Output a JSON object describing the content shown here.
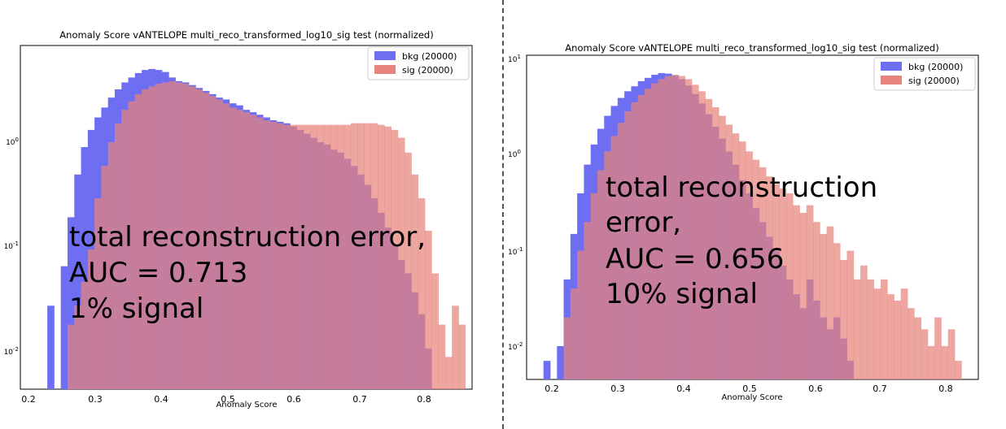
{
  "panels": [
    {
      "title": "Anomaly Score vANTELOPE multi_reco_transformed_log10_sig test (normalized)",
      "xlabel": "Anomaly Score",
      "x_ticks": [
        "0.2",
        "0.3",
        "0.4",
        "0.5",
        "0.6",
        "0.7",
        "0.8"
      ],
      "y_ticks": [
        "10^0",
        "10^-1",
        "10^-2"
      ],
      "legend": [
        "bkg (20000)",
        "sig (20000)"
      ],
      "annotation": [
        "total reconstruction error,",
        "AUC = 0.713",
        "1% signal"
      ]
    },
    {
      "title": "Anomaly Score vANTELOPE multi_reco_transformed_log10_sig test (normalized)",
      "xlabel": "Anomaly Score",
      "x_ticks": [
        "0.2",
        "0.3",
        "0.4",
        "0.5",
        "0.6",
        "0.7",
        "0.8"
      ],
      "y_ticks": [
        "10^1",
        "10^0",
        "10^-1",
        "10^-2"
      ],
      "legend": [
        "bkg (20000)",
        "sig (20000)"
      ],
      "annotation": [
        "total reconstruction",
        "error,",
        "AUC = 0.656",
        "10% signal"
      ]
    }
  ],
  "colors": {
    "bkg": "#6e6ef2",
    "sig": "#e8837b",
    "overlap": "#ae4179"
  },
  "chart_data": [
    {
      "type": "bar",
      "title": "Anomaly Score vANTELOPE multi_reco_transformed_log10_sig test (normalized)",
      "xlabel": "Anomaly Score",
      "ylabel": "",
      "scale": "log",
      "xlim": [
        0.18,
        0.85
      ],
      "ylim_log10": [
        -2.3,
        0.9
      ],
      "legend_position": "top-right",
      "series": [
        {
          "name": "bkg (20000)",
          "color": "#6e6ef2",
          "points": [
            [
              0.225,
              0.03
            ],
            [
              0.235,
              0.005
            ],
            [
              0.245,
              0.07
            ],
            [
              0.255,
              0.2
            ],
            [
              0.265,
              0.5
            ],
            [
              0.275,
              0.9
            ],
            [
              0.285,
              1.3
            ],
            [
              0.295,
              1.7
            ],
            [
              0.305,
              2.1
            ],
            [
              0.315,
              2.6
            ],
            [
              0.325,
              3.1
            ],
            [
              0.335,
              3.6
            ],
            [
              0.345,
              4.0
            ],
            [
              0.355,
              4.4
            ],
            [
              0.365,
              4.7
            ],
            [
              0.375,
              4.8
            ],
            [
              0.385,
              4.7
            ],
            [
              0.395,
              4.5
            ],
            [
              0.405,
              4.0
            ],
            [
              0.415,
              3.7
            ],
            [
              0.425,
              3.6
            ],
            [
              0.435,
              3.4
            ],
            [
              0.445,
              3.2
            ],
            [
              0.455,
              3.0
            ],
            [
              0.465,
              2.8
            ],
            [
              0.475,
              2.6
            ],
            [
              0.485,
              2.5
            ],
            [
              0.495,
              2.3
            ],
            [
              0.505,
              2.2
            ],
            [
              0.515,
              2.0
            ],
            [
              0.525,
              1.9
            ],
            [
              0.535,
              1.8
            ],
            [
              0.545,
              1.7
            ],
            [
              0.555,
              1.6
            ],
            [
              0.565,
              1.55
            ],
            [
              0.575,
              1.5
            ],
            [
              0.585,
              1.4
            ],
            [
              0.595,
              1.3
            ],
            [
              0.605,
              1.2
            ],
            [
              0.615,
              1.1
            ],
            [
              0.625,
              1.0
            ],
            [
              0.635,
              0.95
            ],
            [
              0.645,
              0.85
            ],
            [
              0.655,
              0.8
            ],
            [
              0.665,
              0.7
            ],
            [
              0.675,
              0.6
            ],
            [
              0.685,
              0.5
            ],
            [
              0.695,
              0.4
            ],
            [
              0.705,
              0.3
            ],
            [
              0.715,
              0.22
            ],
            [
              0.725,
              0.16
            ],
            [
              0.735,
              0.11
            ],
            [
              0.745,
              0.08
            ],
            [
              0.755,
              0.06
            ],
            [
              0.765,
              0.04
            ],
            [
              0.775,
              0.025
            ],
            [
              0.785,
              0.012
            ]
          ]
        },
        {
          "name": "sig (20000)",
          "color": "#e8837b",
          "points": [
            [
              0.255,
              0.02
            ],
            [
              0.265,
              0.03
            ],
            [
              0.275,
              0.05
            ],
            [
              0.285,
              0.1
            ],
            [
              0.295,
              0.3
            ],
            [
              0.305,
              0.6
            ],
            [
              0.315,
              1.0
            ],
            [
              0.325,
              1.5
            ],
            [
              0.335,
              2.0
            ],
            [
              0.345,
              2.4
            ],
            [
              0.355,
              2.8
            ],
            [
              0.365,
              3.1
            ],
            [
              0.375,
              3.3
            ],
            [
              0.385,
              3.5
            ],
            [
              0.395,
              3.6
            ],
            [
              0.405,
              3.7
            ],
            [
              0.415,
              3.6
            ],
            [
              0.425,
              3.5
            ],
            [
              0.435,
              3.3
            ],
            [
              0.445,
              3.1
            ],
            [
              0.455,
              2.9
            ],
            [
              0.465,
              2.7
            ],
            [
              0.475,
              2.5
            ],
            [
              0.485,
              2.3
            ],
            [
              0.495,
              2.1
            ],
            [
              0.505,
              2.0
            ],
            [
              0.515,
              1.9
            ],
            [
              0.525,
              1.8
            ],
            [
              0.535,
              1.7
            ],
            [
              0.545,
              1.6
            ],
            [
              0.555,
              1.55
            ],
            [
              0.565,
              1.5
            ],
            [
              0.575,
              1.45
            ],
            [
              0.585,
              1.45
            ],
            [
              0.595,
              1.45
            ],
            [
              0.605,
              1.45
            ],
            [
              0.615,
              1.45
            ],
            [
              0.625,
              1.45
            ],
            [
              0.635,
              1.45
            ],
            [
              0.645,
              1.45
            ],
            [
              0.655,
              1.45
            ],
            [
              0.665,
              1.45
            ],
            [
              0.675,
              1.5
            ],
            [
              0.685,
              1.5
            ],
            [
              0.695,
              1.5
            ],
            [
              0.705,
              1.5
            ],
            [
              0.715,
              1.45
            ],
            [
              0.725,
              1.4
            ],
            [
              0.735,
              1.3
            ],
            [
              0.745,
              1.1
            ],
            [
              0.755,
              0.8
            ],
            [
              0.765,
              0.5
            ],
            [
              0.775,
              0.3
            ],
            [
              0.785,
              0.15
            ],
            [
              0.795,
              0.06
            ],
            [
              0.805,
              0.02
            ],
            [
              0.815,
              0.01
            ],
            [
              0.825,
              0.03
            ],
            [
              0.835,
              0.02
            ]
          ]
        }
      ]
    },
    {
      "type": "bar",
      "title": "Anomaly Score vANTELOPE multi_reco_transformed_log10_sig test (normalized)",
      "xlabel": "Anomaly Score",
      "ylabel": "",
      "scale": "log",
      "xlim": [
        0.165,
        0.835
      ],
      "ylim_log10": [
        -2.35,
        1.05
      ],
      "legend_position": "top-right",
      "series": [
        {
          "name": "bkg (20000)",
          "color": "#6e6ef2",
          "points": [
            [
              0.195,
              0.007
            ],
            [
              0.215,
              0.01
            ],
            [
              0.225,
              0.05
            ],
            [
              0.235,
              0.15
            ],
            [
              0.245,
              0.4
            ],
            [
              0.255,
              0.8
            ],
            [
              0.265,
              1.3
            ],
            [
              0.275,
              1.9
            ],
            [
              0.285,
              2.6
            ],
            [
              0.295,
              3.3
            ],
            [
              0.305,
              4.0
            ],
            [
              0.315,
              4.7
            ],
            [
              0.325,
              5.3
            ],
            [
              0.335,
              6.0
            ],
            [
              0.345,
              6.5
            ],
            [
              0.355,
              7.0
            ],
            [
              0.365,
              7.3
            ],
            [
              0.375,
              7.2
            ],
            [
              0.385,
              6.9
            ],
            [
              0.395,
              6.3
            ],
            [
              0.405,
              5.4
            ],
            [
              0.415,
              4.4
            ],
            [
              0.425,
              3.5
            ],
            [
              0.435,
              2.7
            ],
            [
              0.445,
              2.0
            ],
            [
              0.455,
              1.5
            ],
            [
              0.465,
              1.1
            ],
            [
              0.475,
              0.8
            ],
            [
              0.485,
              0.55
            ],
            [
              0.495,
              0.4
            ],
            [
              0.505,
              0.28
            ],
            [
              0.515,
              0.2
            ],
            [
              0.525,
              0.14
            ],
            [
              0.535,
              0.1
            ],
            [
              0.545,
              0.07
            ],
            [
              0.555,
              0.05
            ],
            [
              0.565,
              0.035
            ],
            [
              0.575,
              0.025
            ],
            [
              0.585,
              0.05
            ],
            [
              0.595,
              0.03
            ],
            [
              0.605,
              0.02
            ],
            [
              0.615,
              0.015
            ],
            [
              0.625,
              0.02
            ],
            [
              0.635,
              0.012
            ],
            [
              0.645,
              0.007
            ]
          ]
        },
        {
          "name": "sig (20000)",
          "color": "#e8837b",
          "points": [
            [
              0.225,
              0.02
            ],
            [
              0.235,
              0.04
            ],
            [
              0.245,
              0.1
            ],
            [
              0.255,
              0.2
            ],
            [
              0.265,
              0.4
            ],
            [
              0.275,
              0.7
            ],
            [
              0.285,
              1.1
            ],
            [
              0.295,
              1.6
            ],
            [
              0.305,
              2.2
            ],
            [
              0.315,
              2.9
            ],
            [
              0.325,
              3.6
            ],
            [
              0.335,
              4.3
            ],
            [
              0.345,
              5.0
            ],
            [
              0.355,
              5.7
            ],
            [
              0.365,
              6.3
            ],
            [
              0.375,
              6.8
            ],
            [
              0.385,
              7.0
            ],
            [
              0.395,
              6.8
            ],
            [
              0.405,
              6.3
            ],
            [
              0.415,
              5.5
            ],
            [
              0.425,
              4.7
            ],
            [
              0.435,
              3.9
            ],
            [
              0.445,
              3.2
            ],
            [
              0.455,
              2.6
            ],
            [
              0.465,
              2.1
            ],
            [
              0.475,
              1.7
            ],
            [
              0.485,
              1.4
            ],
            [
              0.495,
              1.1
            ],
            [
              0.505,
              0.9
            ],
            [
              0.515,
              0.75
            ],
            [
              0.525,
              0.6
            ],
            [
              0.535,
              0.5
            ],
            [
              0.545,
              0.45
            ],
            [
              0.555,
              0.4
            ],
            [
              0.565,
              0.3
            ],
            [
              0.575,
              0.25
            ],
            [
              0.585,
              0.3
            ],
            [
              0.595,
              0.2
            ],
            [
              0.605,
              0.15
            ],
            [
              0.615,
              0.18
            ],
            [
              0.625,
              0.12
            ],
            [
              0.635,
              0.08
            ],
            [
              0.645,
              0.1
            ],
            [
              0.655,
              0.05
            ],
            [
              0.665,
              0.07
            ],
            [
              0.675,
              0.05
            ],
            [
              0.685,
              0.04
            ],
            [
              0.695,
              0.05
            ],
            [
              0.705,
              0.035
            ],
            [
              0.715,
              0.03
            ],
            [
              0.725,
              0.04
            ],
            [
              0.735,
              0.025
            ],
            [
              0.745,
              0.02
            ],
            [
              0.755,
              0.015
            ],
            [
              0.765,
              0.01
            ],
            [
              0.775,
              0.02
            ],
            [
              0.785,
              0.01
            ],
            [
              0.795,
              0.015
            ],
            [
              0.805,
              0.007
            ]
          ]
        }
      ]
    }
  ]
}
